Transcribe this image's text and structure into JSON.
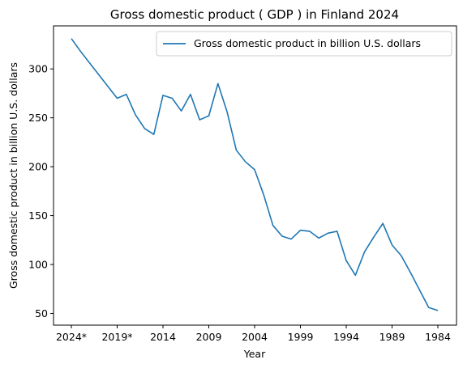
{
  "chart_data": {
    "type": "line",
    "title": "Gross domestic product ( GDP ) in Finland 2024",
    "xlabel": "Year",
    "ylabel": "Gross domestic product in billion U.S. dollars",
    "x_tick_labels": [
      "2024*",
      "2019*",
      "2014",
      "2009",
      "2004",
      "1999",
      "1994",
      "1989",
      "1984"
    ],
    "y_ticks": [
      50,
      100,
      150,
      200,
      250,
      300
    ],
    "ylim": [
      38,
      344
    ],
    "grid": false,
    "legend_position": "top-right",
    "x": [
      "2024*",
      "2023*",
      "2022*",
      "2021*",
      "2020*",
      "2019*",
      "2018",
      "2017",
      "2016",
      "2015",
      "2014",
      "2013",
      "2012",
      "2011",
      "2010",
      "2009",
      "2008",
      "2007",
      "2006",
      "2005",
      "2004",
      "2003",
      "2002",
      "2001",
      "2000",
      "1999",
      "1998",
      "1997",
      "1996",
      "1995",
      "1994",
      "1993",
      "1992",
      "1991",
      "1990",
      "1989",
      "1988",
      "1987",
      "1986",
      "1985",
      "1984"
    ],
    "series": [
      {
        "name": "Gross domestic product in billion U.S. dollars",
        "color": "#1f77b4",
        "values": [
          331,
          318,
          306,
          294,
          282,
          270,
          274,
          253,
          239,
          233,
          273,
          270,
          257,
          274,
          248,
          252,
          285,
          256,
          217,
          205,
          197,
          171,
          140,
          129,
          126,
          135,
          134,
          127,
          132,
          134,
          104,
          89,
          113,
          128,
          142,
          120,
          109,
          92,
          74,
          56,
          53
        ]
      }
    ]
  }
}
